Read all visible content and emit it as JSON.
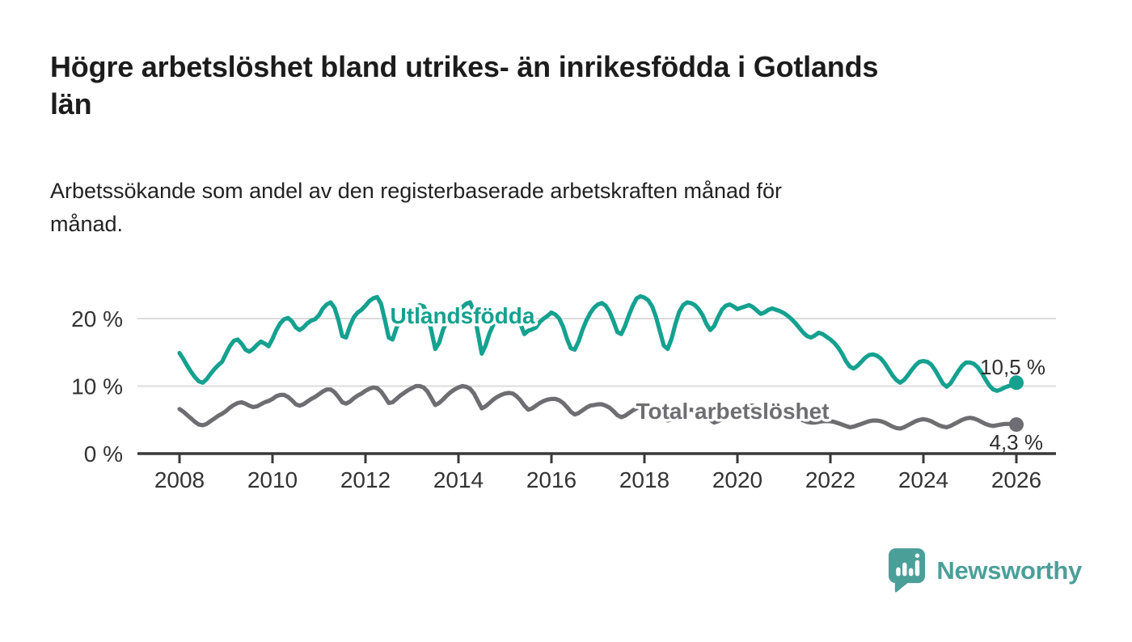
{
  "header": {
    "title": "Högre arbetslöshet bland utrikes- än inrikesfödda i Gotlands\nlän",
    "subtitle": "Arbetssökande som andel av den registerbaserade arbetskraften månad för\nmånad."
  },
  "footer": {
    "brand": "Newsworthy"
  },
  "colors": {
    "accent_teal": "#15a18f",
    "series_gray": "#6e6e72",
    "grid": "#dcdcdc",
    "axis": "#38383a",
    "tick_text": "#333333",
    "logo": "#4b9f99"
  },
  "chart_data": {
    "type": "line",
    "title": "Högre arbetslöshet bland utrikes- än inrikesfödda i Gotlands län",
    "subtitle": "Arbetssökande som andel av den registerbaserade arbetskraften månad för månad.",
    "x_interval": "monthly",
    "x_start_year": 2008,
    "x_end_year": 2026,
    "x_ticks": [
      2008,
      2010,
      2012,
      2014,
      2016,
      2018,
      2020,
      2022,
      2024,
      2026
    ],
    "y_ticks": [
      {
        "value": 0,
        "label": "0 %"
      },
      {
        "value": 10,
        "label": "10 %"
      },
      {
        "value": 20,
        "label": "20 %"
      }
    ],
    "ylim": [
      0,
      25
    ],
    "grid": "horizontal",
    "legend_position": "inline-labels",
    "series": [
      {
        "name": "Utlandsfödda",
        "color": "#15a18f",
        "end_label": "10,5 %",
        "end_value": 10.5,
        "values": [
          14.9,
          14.0,
          13.0,
          12.1,
          11.3,
          10.7,
          10.5,
          11.0,
          11.8,
          12.5,
          13.1,
          13.6,
          14.8,
          15.9,
          16.7,
          16.9,
          16.3,
          15.4,
          15.1,
          15.5,
          16.1,
          16.6,
          16.3,
          15.9,
          17.0,
          18.3,
          19.3,
          19.9,
          20.1,
          19.6,
          18.7,
          18.3,
          18.7,
          19.3,
          19.7,
          19.9,
          20.5,
          21.5,
          22.1,
          22.4,
          21.6,
          19.8,
          17.4,
          17.2,
          18.9,
          20.2,
          20.9,
          21.3,
          21.9,
          22.6,
          23.0,
          23.2,
          22.2,
          19.8,
          17.2,
          16.9,
          18.6,
          19.9,
          20.6,
          20.9,
          21.1,
          21.6,
          22.0,
          21.8,
          20.6,
          18.2,
          15.5,
          16.4,
          18.3,
          19.6,
          20.3,
          20.7,
          21.0,
          21.7,
          22.2,
          22.4,
          21.0,
          17.9,
          14.8,
          16.0,
          17.8,
          19.1,
          19.8,
          20.2,
          20.4,
          20.7,
          20.9,
          20.4,
          19.2,
          17.7,
          18.2,
          18.4,
          18.7,
          19.5,
          20.0,
          20.4,
          20.9,
          20.6,
          20.0,
          18.8,
          17.0,
          15.6,
          15.4,
          16.6,
          18.3,
          19.7,
          20.8,
          21.6,
          22.1,
          22.3,
          21.9,
          21.0,
          19.6,
          18.0,
          17.7,
          18.9,
          20.5,
          21.9,
          23.0,
          23.3,
          23.1,
          22.7,
          21.8,
          20.2,
          18.1,
          16.0,
          15.5,
          17.0,
          19.2,
          21.0,
          22.0,
          22.4,
          22.3,
          22.0,
          21.4,
          20.5,
          19.2,
          18.3,
          18.9,
          20.2,
          21.3,
          21.9,
          22.1,
          21.8,
          21.4,
          21.6,
          21.8,
          22.0,
          21.7,
          21.2,
          20.7,
          20.9,
          21.3,
          21.5,
          21.3,
          21.1,
          20.8,
          20.4,
          19.9,
          19.3,
          18.6,
          17.9,
          17.4,
          17.2,
          17.5,
          17.9,
          17.7,
          17.3,
          16.9,
          16.4,
          15.7,
          14.8,
          13.7,
          12.9,
          12.6,
          13.0,
          13.6,
          14.2,
          14.6,
          14.7,
          14.5,
          14.1,
          13.4,
          12.5,
          11.6,
          10.9,
          10.5,
          10.9,
          11.6,
          12.4,
          13.1,
          13.6,
          13.7,
          13.6,
          13.2,
          12.4,
          11.4,
          10.4,
          9.9,
          10.4,
          11.3,
          12.2,
          13.0,
          13.5,
          13.5,
          13.3,
          12.8,
          12.0,
          11.0,
          10.1,
          9.5,
          9.3,
          9.5,
          9.8,
          10.0,
          10.2,
          10.5
        ]
      },
      {
        "name": "Total arbetslöshet",
        "color": "#6e6e72",
        "end_label": "4,3 %",
        "end_value": 4.3,
        "values": [
          6.6,
          6.2,
          5.7,
          5.2,
          4.7,
          4.3,
          4.2,
          4.4,
          4.8,
          5.2,
          5.6,
          5.9,
          6.3,
          6.8,
          7.2,
          7.5,
          7.6,
          7.4,
          7.1,
          6.9,
          7.0,
          7.3,
          7.6,
          7.8,
          8.1,
          8.5,
          8.7,
          8.7,
          8.4,
          7.9,
          7.3,
          7.1,
          7.3,
          7.7,
          8.1,
          8.4,
          8.8,
          9.2,
          9.5,
          9.5,
          9.1,
          8.4,
          7.6,
          7.4,
          7.7,
          8.2,
          8.6,
          8.9,
          9.3,
          9.6,
          9.8,
          9.7,
          9.2,
          8.4,
          7.5,
          7.6,
          8.1,
          8.6,
          9.0,
          9.4,
          9.7,
          10.0,
          10.0,
          9.8,
          9.2,
          8.2,
          7.2,
          7.5,
          8.0,
          8.6,
          9.1,
          9.5,
          9.8,
          10.0,
          9.9,
          9.6,
          8.9,
          7.8,
          6.7,
          7.0,
          7.5,
          8.0,
          8.4,
          8.7,
          8.9,
          9.0,
          8.9,
          8.5,
          7.9,
          7.1,
          6.5,
          6.7,
          7.1,
          7.5,
          7.8,
          8.0,
          8.1,
          8.1,
          7.9,
          7.5,
          6.9,
          6.2,
          5.8,
          6.0,
          6.4,
          6.8,
          7.1,
          7.2,
          7.3,
          7.3,
          7.1,
          6.8,
          6.3,
          5.7,
          5.4,
          5.6,
          6.0,
          6.4,
          6.7,
          6.9,
          7.0,
          6.9,
          6.7,
          6.4,
          5.9,
          5.3,
          4.9,
          5.1,
          5.5,
          5.9,
          6.2,
          6.4,
          6.5,
          6.4,
          6.2,
          5.9,
          5.5,
          5.0,
          4.6,
          4.8,
          5.1,
          5.4,
          5.6,
          5.8,
          6.1,
          6.4,
          6.8,
          7.1,
          7.1,
          6.9,
          6.6,
          6.4,
          6.3,
          6.2,
          6.1,
          5.9,
          5.8,
          5.7,
          5.6,
          5.4,
          5.1,
          4.9,
          4.7,
          4.6,
          4.6,
          4.7,
          4.8,
          4.8,
          4.8,
          4.7,
          4.5,
          4.3,
          4.1,
          3.9,
          4.0,
          4.2,
          4.4,
          4.6,
          4.8,
          4.9,
          4.9,
          4.8,
          4.6,
          4.3,
          4.0,
          3.8,
          3.7,
          3.9,
          4.2,
          4.5,
          4.8,
          5.0,
          5.1,
          5.0,
          4.8,
          4.5,
          4.2,
          4.0,
          3.9,
          4.1,
          4.4,
          4.7,
          5.0,
          5.2,
          5.3,
          5.2,
          5.0,
          4.7,
          4.4,
          4.2,
          4.1,
          4.2,
          4.3,
          4.4,
          4.4,
          4.4,
          4.3
        ]
      }
    ]
  }
}
